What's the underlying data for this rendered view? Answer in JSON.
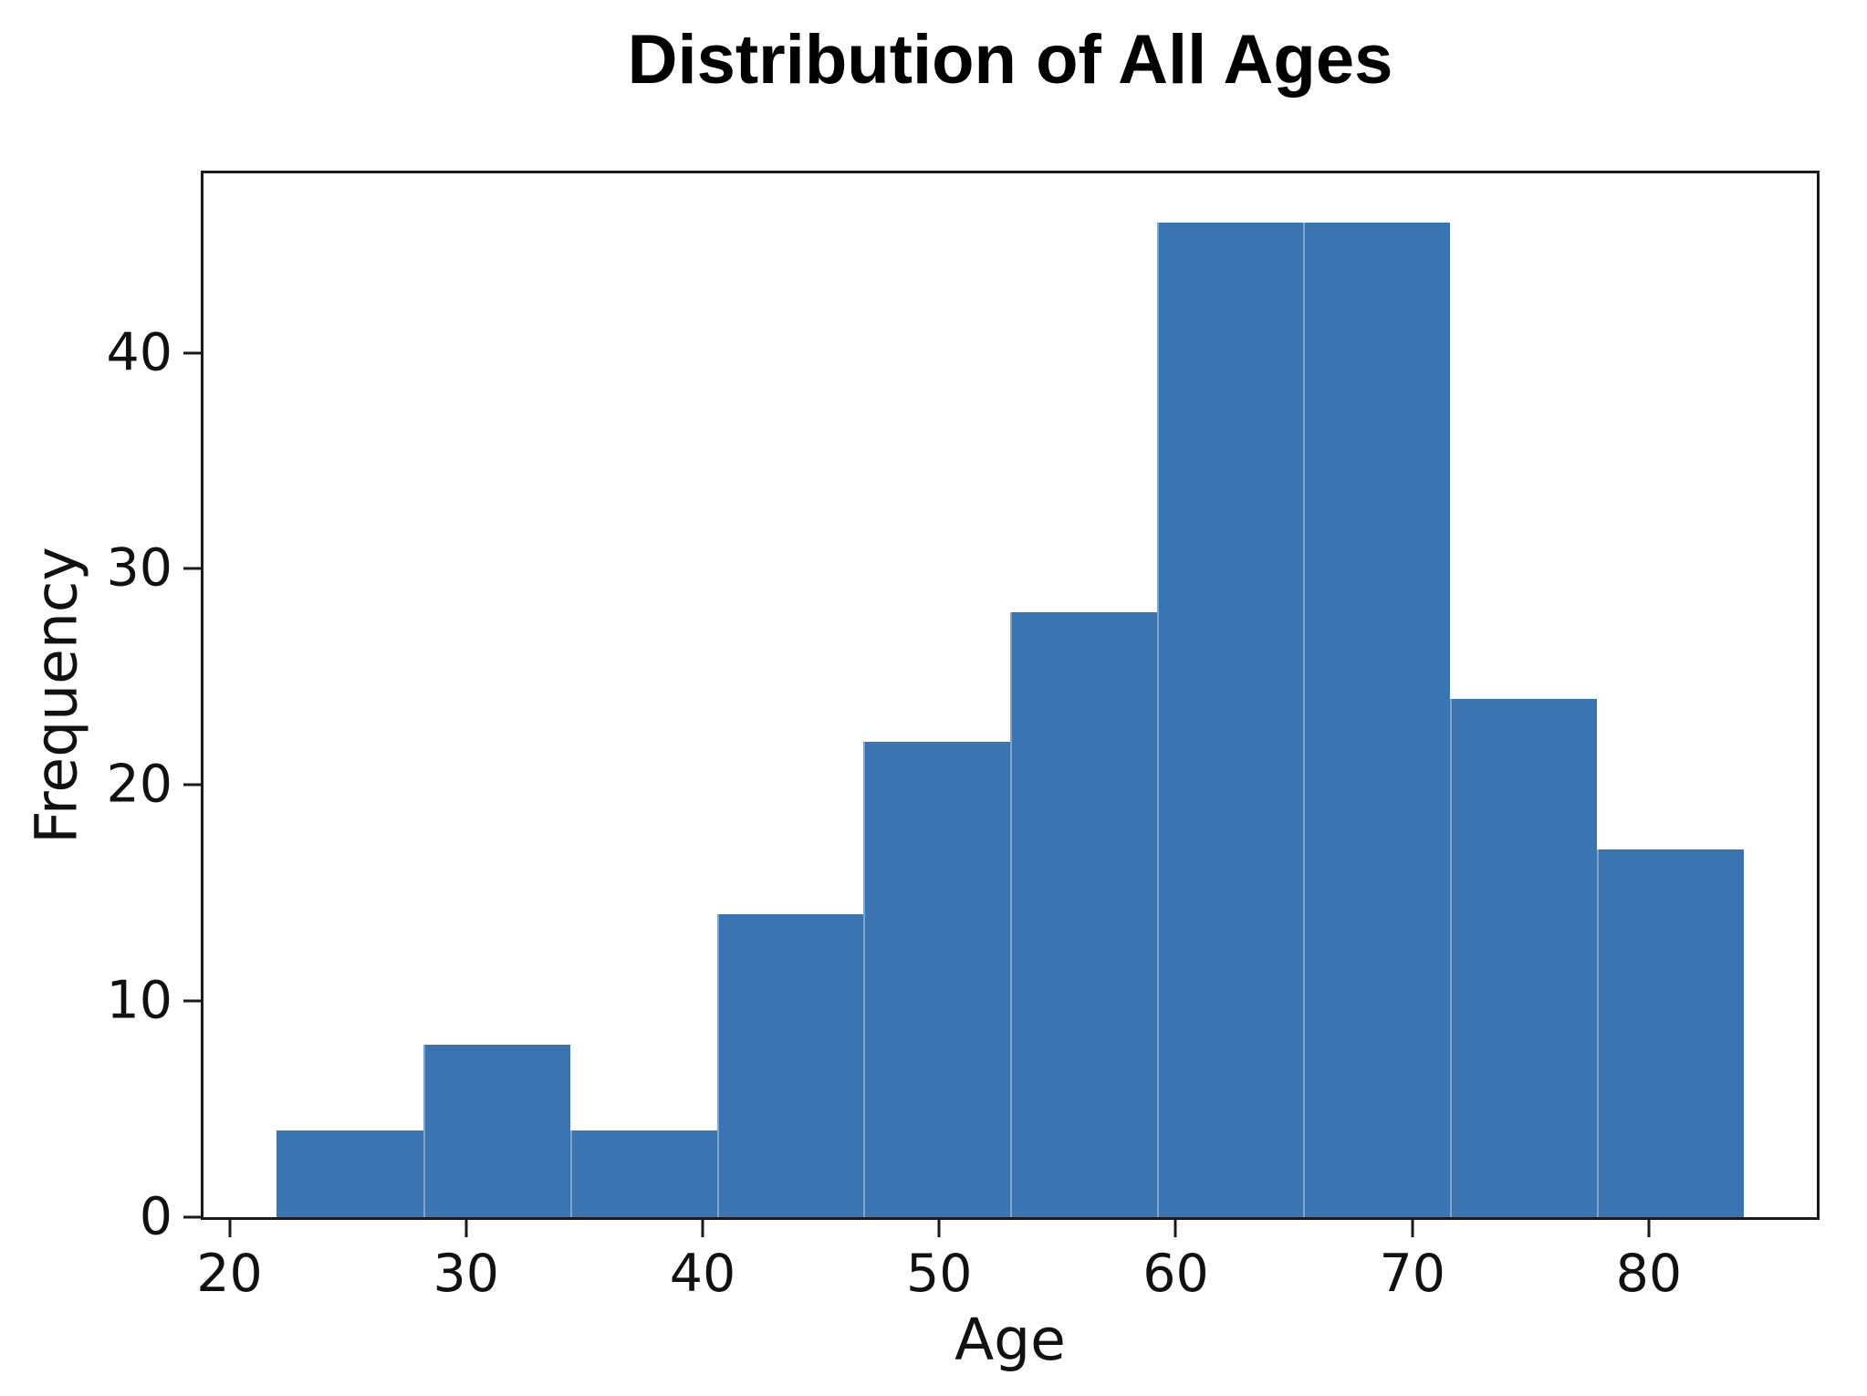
{
  "chart_data": {
    "type": "bar",
    "subtype": "histogram",
    "title": "Distribution of All Ages",
    "xlabel": "Age",
    "ylabel": "Frequency",
    "bin_edges": [
      22,
      28.2,
      34.4,
      40.6,
      46.8,
      53,
      59.2,
      65.4,
      71.6,
      77.8,
      84
    ],
    "frequencies": [
      4,
      8,
      4,
      14,
      22,
      28,
      46,
      46,
      24,
      17
    ],
    "x_ticks": [
      20,
      30,
      40,
      50,
      60,
      70,
      80
    ],
    "y_ticks": [
      0,
      10,
      20,
      30,
      40
    ],
    "xlim": [
      18.9,
      87.1
    ],
    "ylim": [
      0,
      48.3
    ],
    "bar_color": "#3a75b1",
    "spine_color": "#1a1a1a",
    "grid": false,
    "legend_position": "none"
  }
}
